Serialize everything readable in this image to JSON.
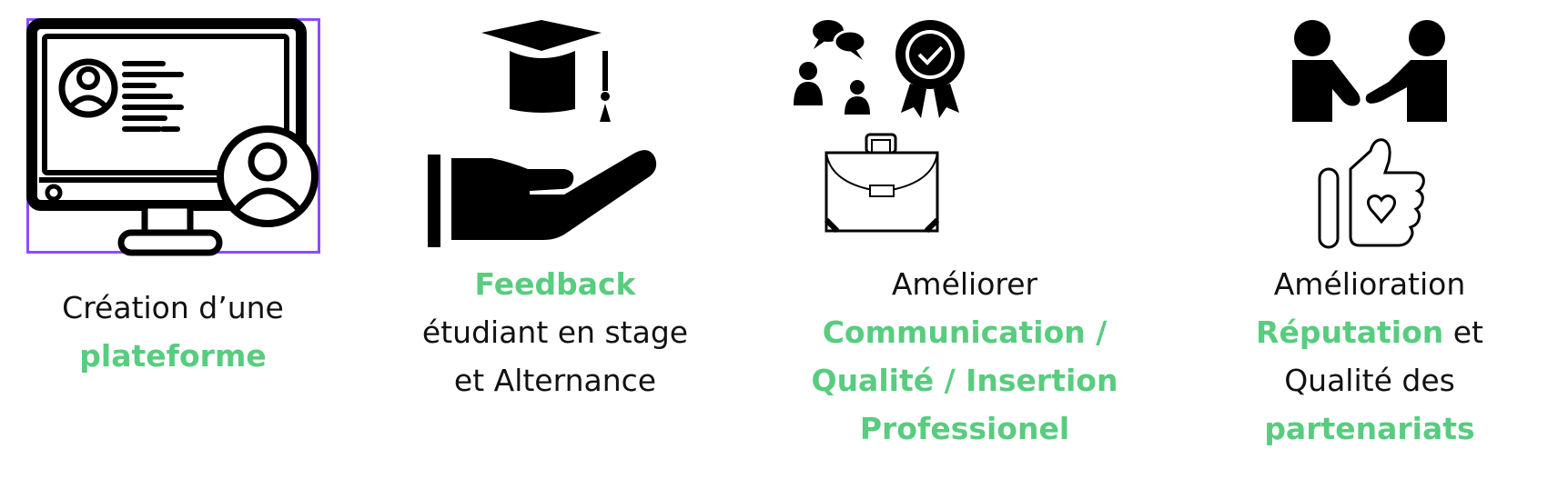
{
  "items": [
    {
      "icon": "computer-profile-icon",
      "caption": [
        [
          {
            "t": "Création d’une",
            "h": false
          }
        ],
        [
          {
            "t": "plateforme",
            "h": true
          }
        ]
      ]
    },
    {
      "icon": "graduation-hand-icon",
      "caption": [
        [
          {
            "t": "Feedback",
            "h": true
          }
        ],
        [
          {
            "t": "étudiant en stage",
            "h": false
          }
        ],
        [
          {
            "t": "et Alternance",
            "h": false
          }
        ]
      ]
    },
    {
      "icon": "communication-badge-briefcase-icon",
      "caption": [
        [
          {
            "t": "Améliorer",
            "h": false
          }
        ],
        [
          {
            "t": "Communication /",
            "h": true
          }
        ],
        [
          {
            "t": "Qualité / Insertion",
            "h": true
          }
        ],
        [
          {
            "t": "Professionel",
            "h": true
          }
        ]
      ]
    },
    {
      "icon": "handshake-thumbsup-icon",
      "caption": [
        [
          {
            "t": "Amélioration",
            "h": false
          }
        ],
        [
          {
            "t": "Réputation",
            "h": true
          },
          {
            "t": " et",
            "h": false
          }
        ],
        [
          {
            "t": "Qualité des",
            "h": false
          }
        ],
        [
          {
            "t": "partenariats",
            "h": true
          }
        ]
      ]
    }
  ],
  "colors": {
    "highlight": "#58cc7f",
    "selection": "#8b4dff",
    "ink": "#000000"
  }
}
